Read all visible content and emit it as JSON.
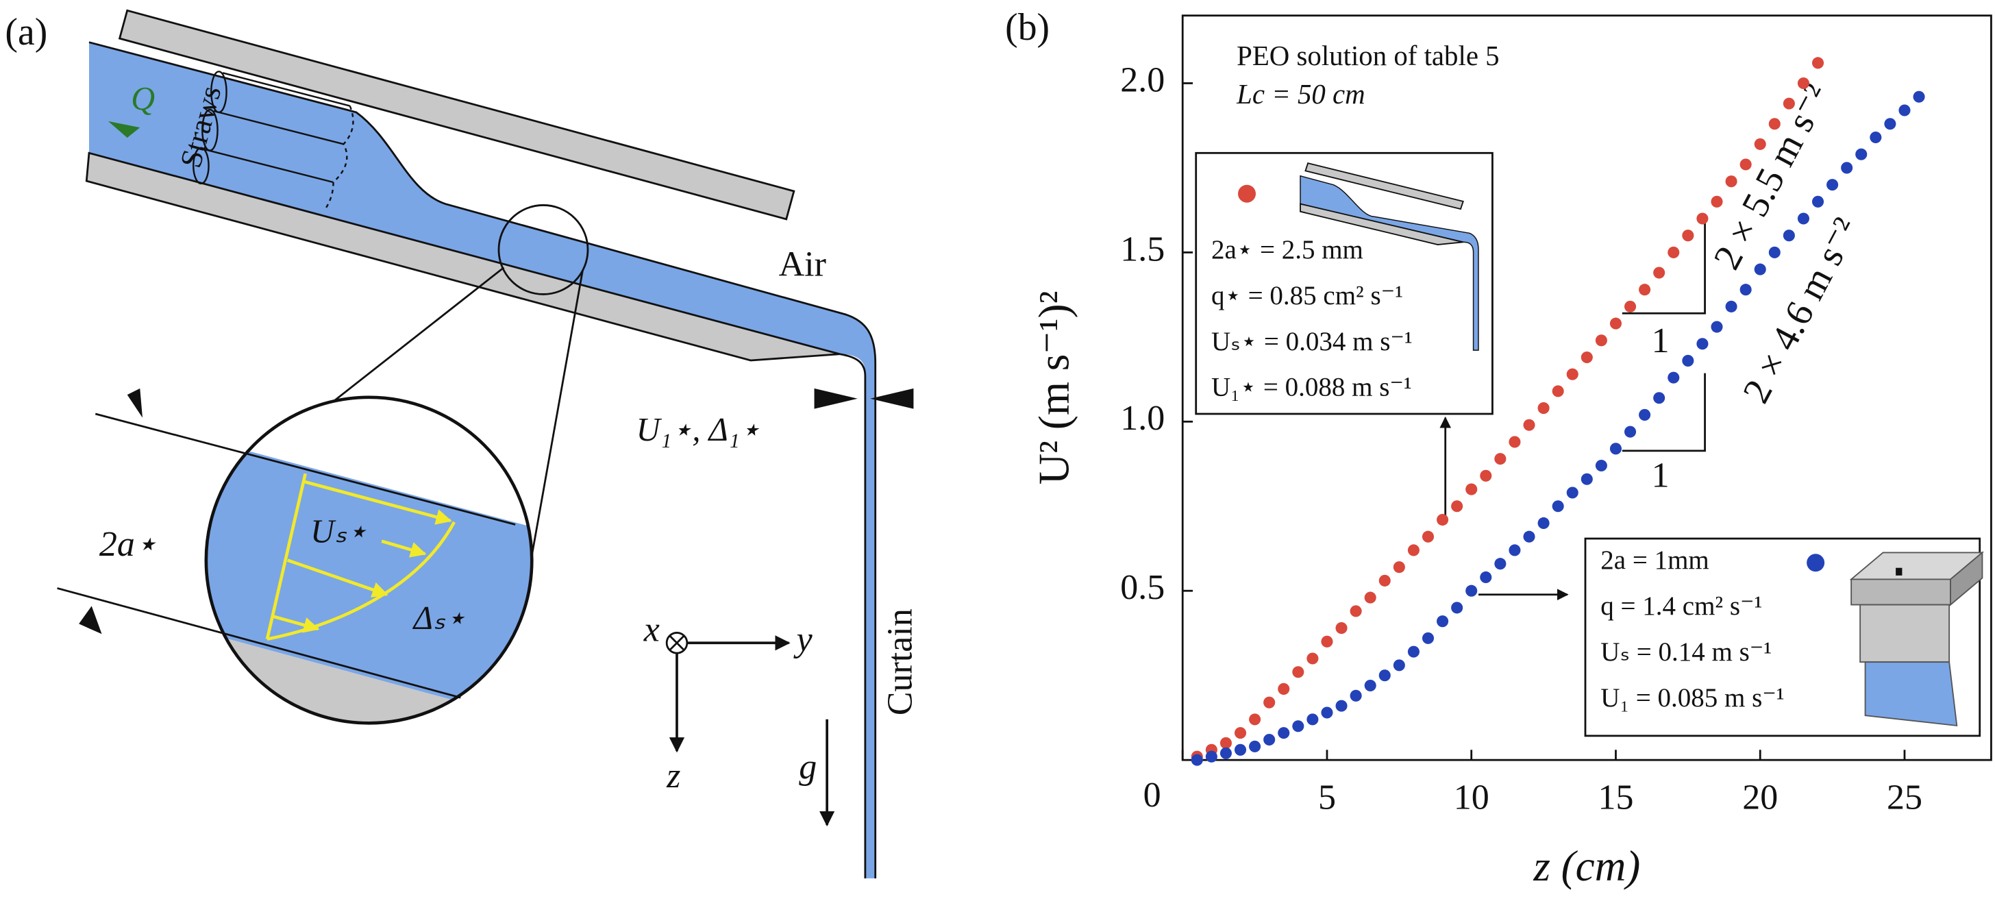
{
  "diagram": {
    "panel_label": "(a)",
    "flow": "Q",
    "straws": "Straws",
    "air": "Air",
    "jet": "U₁⋆, Δ₁⋆",
    "thickness": "2a⋆",
    "surface_velocity": "Uₛ⋆",
    "boundary_layer": "Δₛ⋆",
    "axis_x": "x",
    "axis_y": "y",
    "axis_z": "z",
    "gravity": "g",
    "curtain": "Curtain"
  },
  "chart_data": {
    "type": "scatter",
    "panel_label": "(b)",
    "xlabel": "z (cm)",
    "ylabel": "U² (m s⁻¹)²",
    "xlim": [
      0,
      28
    ],
    "ylim": [
      0,
      2.2
    ],
    "xticks": [
      0,
      5,
      10,
      15,
      20,
      25
    ],
    "yticks": [
      0.5,
      {
        "value": 1,
        "label": "1.0"
      },
      1.5,
      {
        "value": 2,
        "label": "2.0"
      }
    ],
    "annotations": [
      "PEO solution of table 5",
      "Lc = 50 cm"
    ],
    "insets": [
      {
        "lines": [
          "2a⋆ = 2.5 mm",
          "q⋆ = 0.85 cm² s⁻¹",
          "Uₛ⋆ = 0.034 m s⁻¹",
          "U₁⋆ = 0.088 m s⁻¹"
        ]
      },
      {
        "lines": [
          "2a = 1mm",
          "q = 1.4 cm² s⁻¹",
          "Uₛ = 0.14 m s⁻¹",
          "U₁ = 0.085 m s⁻¹"
        ]
      }
    ],
    "slope_labels": [
      "2 × 5.5 m s⁻²",
      "1",
      "2 × 4.6 m s⁻²",
      "1"
    ],
    "series": [
      {
        "color": "#d9483b",
        "x": [
          0.5,
          1,
          1.5,
          2,
          2.5,
          3,
          3.5,
          4,
          4.5,
          5,
          5.5,
          6,
          6.5,
          7,
          7.5,
          8,
          8.5,
          9,
          9.5,
          10,
          10.5,
          11,
          11.5,
          12,
          12.5,
          13,
          13.5,
          14,
          14.5,
          15,
          15.5,
          16,
          16.5,
          17,
          17.5,
          18,
          18.5,
          19,
          19.5,
          20,
          20.5,
          21,
          21.5,
          22
        ],
        "values": [
          0.01,
          0.03,
          0.05,
          0.08,
          0.12,
          0.17,
          0.21,
          0.26,
          0.3,
          0.35,
          0.39,
          0.44,
          0.48,
          0.53,
          0.57,
          0.62,
          0.66,
          0.71,
          0.75,
          0.8,
          0.84,
          0.89,
          0.94,
          0.99,
          1.04,
          1.09,
          1.14,
          1.19,
          1.24,
          1.29,
          1.34,
          1.39,
          1.44,
          1.5,
          1.55,
          1.6,
          1.65,
          1.71,
          1.76,
          1.82,
          1.88,
          1.94,
          2.0,
          2.06
        ]
      },
      {
        "color": "#2342b8",
        "x": [
          0.5,
          1,
          1.5,
          2,
          2.5,
          3,
          3.5,
          4,
          4.5,
          5,
          5.5,
          6,
          6.5,
          7,
          7.5,
          8,
          8.5,
          9,
          9.5,
          10,
          10.5,
          11,
          11.5,
          12,
          12.5,
          13,
          13.5,
          14,
          14.5,
          15,
          15.5,
          16,
          16.5,
          17,
          17.5,
          18,
          18.5,
          19,
          19.5,
          20,
          20.5,
          21,
          21.5,
          22,
          22.5,
          23,
          23.5,
          24,
          24.5,
          25,
          25.5
        ],
        "values": [
          0.0,
          0.01,
          0.02,
          0.03,
          0.04,
          0.06,
          0.08,
          0.1,
          0.12,
          0.14,
          0.16,
          0.19,
          0.22,
          0.25,
          0.28,
          0.32,
          0.36,
          0.41,
          0.45,
          0.5,
          0.54,
          0.58,
          0.62,
          0.66,
          0.7,
          0.75,
          0.79,
          0.83,
          0.87,
          0.92,
          0.97,
          1.02,
          1.07,
          1.13,
          1.18,
          1.23,
          1.28,
          1.34,
          1.39,
          1.45,
          1.5,
          1.55,
          1.6,
          1.65,
          1.7,
          1.75,
          1.79,
          1.84,
          1.88,
          1.92,
          1.96
        ]
      }
    ]
  }
}
